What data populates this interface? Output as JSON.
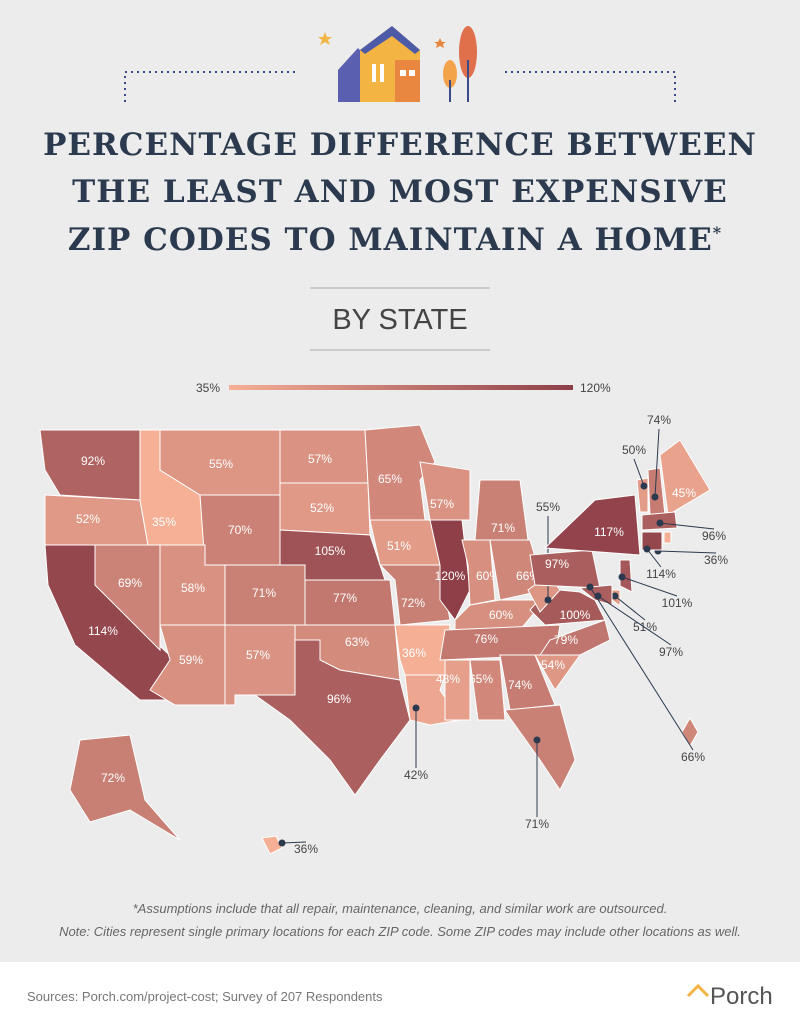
{
  "header": {
    "title": [
      "PERCENTAGE DIFFERENCE BETWEEN",
      "THE LEAST AND MOST EXPENSIVE",
      "ZIP CODES TO MAINTAIN A HOME"
    ],
    "title_mark": "*",
    "subtitle": "BY STATE"
  },
  "legend": {
    "min": {
      "value": 35,
      "label": "35%"
    },
    "max": {
      "value": 120,
      "label": "120%"
    },
    "colors": [
      "#f5b096",
      "#8e3f48"
    ]
  },
  "regions": [
    {
      "value": 92,
      "label": "92%"
    },
    {
      "value": 52,
      "label": "52%"
    },
    {
      "value": 114,
      "label": "114%"
    },
    {
      "value": 69,
      "label": "69%"
    },
    {
      "value": 35,
      "label": "35%"
    },
    {
      "value": 55,
      "label": "55%"
    },
    {
      "value": 70,
      "label": "70%"
    },
    {
      "value": 58,
      "label": "58%"
    },
    {
      "value": 59,
      "label": "59%"
    },
    {
      "value": 71,
      "label": "71%"
    },
    {
      "value": 57,
      "label": "57%"
    },
    {
      "value": 57,
      "label": "57%"
    },
    {
      "value": 52,
      "label": "52%"
    },
    {
      "value": 105,
      "label": "105%"
    },
    {
      "value": 77,
      "label": "77%"
    },
    {
      "value": 63,
      "label": "63%"
    },
    {
      "value": 96,
      "label": "96%"
    },
    {
      "value": 65,
      "label": "65%"
    },
    {
      "value": 51,
      "label": "51%"
    },
    {
      "value": 72,
      "label": "72%"
    },
    {
      "value": 36,
      "label": "36%"
    },
    {
      "value": 42,
      "label": "42%"
    },
    {
      "value": 57,
      "label": "57%"
    },
    {
      "value": 120,
      "label": "120%"
    },
    {
      "value": 71,
      "label": "71%"
    },
    {
      "value": 60,
      "label": "60%"
    },
    {
      "value": 66,
      "label": "66%"
    },
    {
      "value": 60,
      "label": "60%"
    },
    {
      "value": 76,
      "label": "76%"
    },
    {
      "value": 48,
      "label": "48%"
    },
    {
      "value": 65,
      "label": "65%"
    },
    {
      "value": 74,
      "label": "74%"
    },
    {
      "value": 71,
      "label": "71%"
    },
    {
      "value": 54,
      "label": "54%"
    },
    {
      "value": 79,
      "label": "79%"
    },
    {
      "value": 100,
      "label": "100%"
    },
    {
      "value": 55,
      "label": "55%"
    },
    {
      "value": 97,
      "label": "97%"
    },
    {
      "value": 117,
      "label": "117%"
    },
    {
      "value": 50,
      "label": "50%"
    },
    {
      "value": 74,
      "label": "74%"
    },
    {
      "value": 45,
      "label": "45%"
    },
    {
      "value": 96,
      "label": "96%"
    },
    {
      "value": 36,
      "label": "36%"
    },
    {
      "value": 114,
      "label": "114%"
    },
    {
      "value": 101,
      "label": "101%"
    },
    {
      "value": 51,
      "label": "51%"
    },
    {
      "value": 97,
      "label": "97%"
    },
    {
      "value": 66,
      "label": "66%"
    },
    {
      "value": 72,
      "label": "72%"
    },
    {
      "value": 36,
      "label": "36%"
    }
  ],
  "notes": [
    "*Assumptions include that all repair, maintenance, cleaning, and similar work are outsourced.",
    "Note: Cities represent single primary locations for each ZIP code. Some ZIP codes may include other locations as well."
  ],
  "footer": {
    "sources": "Sources: Porch.com/project-cost; Survey of 207 Respondents",
    "brand": "Porch"
  }
}
